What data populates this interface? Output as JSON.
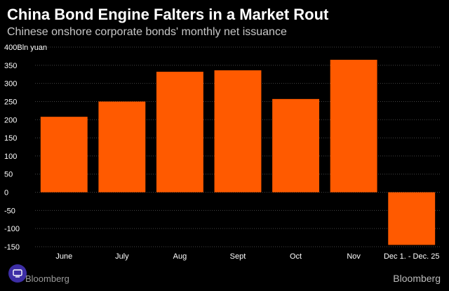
{
  "header": {
    "title": "China Bond Engine Falters in a Market Rout",
    "subtitle": "Chinese onshore corporate bonds' monthly net issuance"
  },
  "footer": {
    "source_left": "Bloomberg",
    "brand_right": "Bloomberg"
  },
  "colors": {
    "background": "#000000",
    "bar": "#ff5a00",
    "grid": "#444444",
    "text": "#ffffff"
  },
  "chart_data": {
    "type": "bar",
    "categories": [
      "June",
      "July",
      "Aug",
      "Sept",
      "Oct",
      "Nov",
      "Dec 1. - Dec. 25"
    ],
    "values": [
      208,
      250,
      332,
      336,
      257,
      365,
      -145
    ],
    "ylim": [
      -150,
      400
    ],
    "yticks": [
      -150,
      -100,
      -50,
      0,
      50,
      100,
      150,
      200,
      250,
      300,
      350,
      400
    ],
    "ytick_labels": [
      "-150",
      "-100",
      "-50",
      "0",
      "50",
      "100",
      "150",
      "200",
      "250",
      "300",
      "350",
      "400Bln yuan"
    ],
    "grid": "horizontal dotted"
  }
}
